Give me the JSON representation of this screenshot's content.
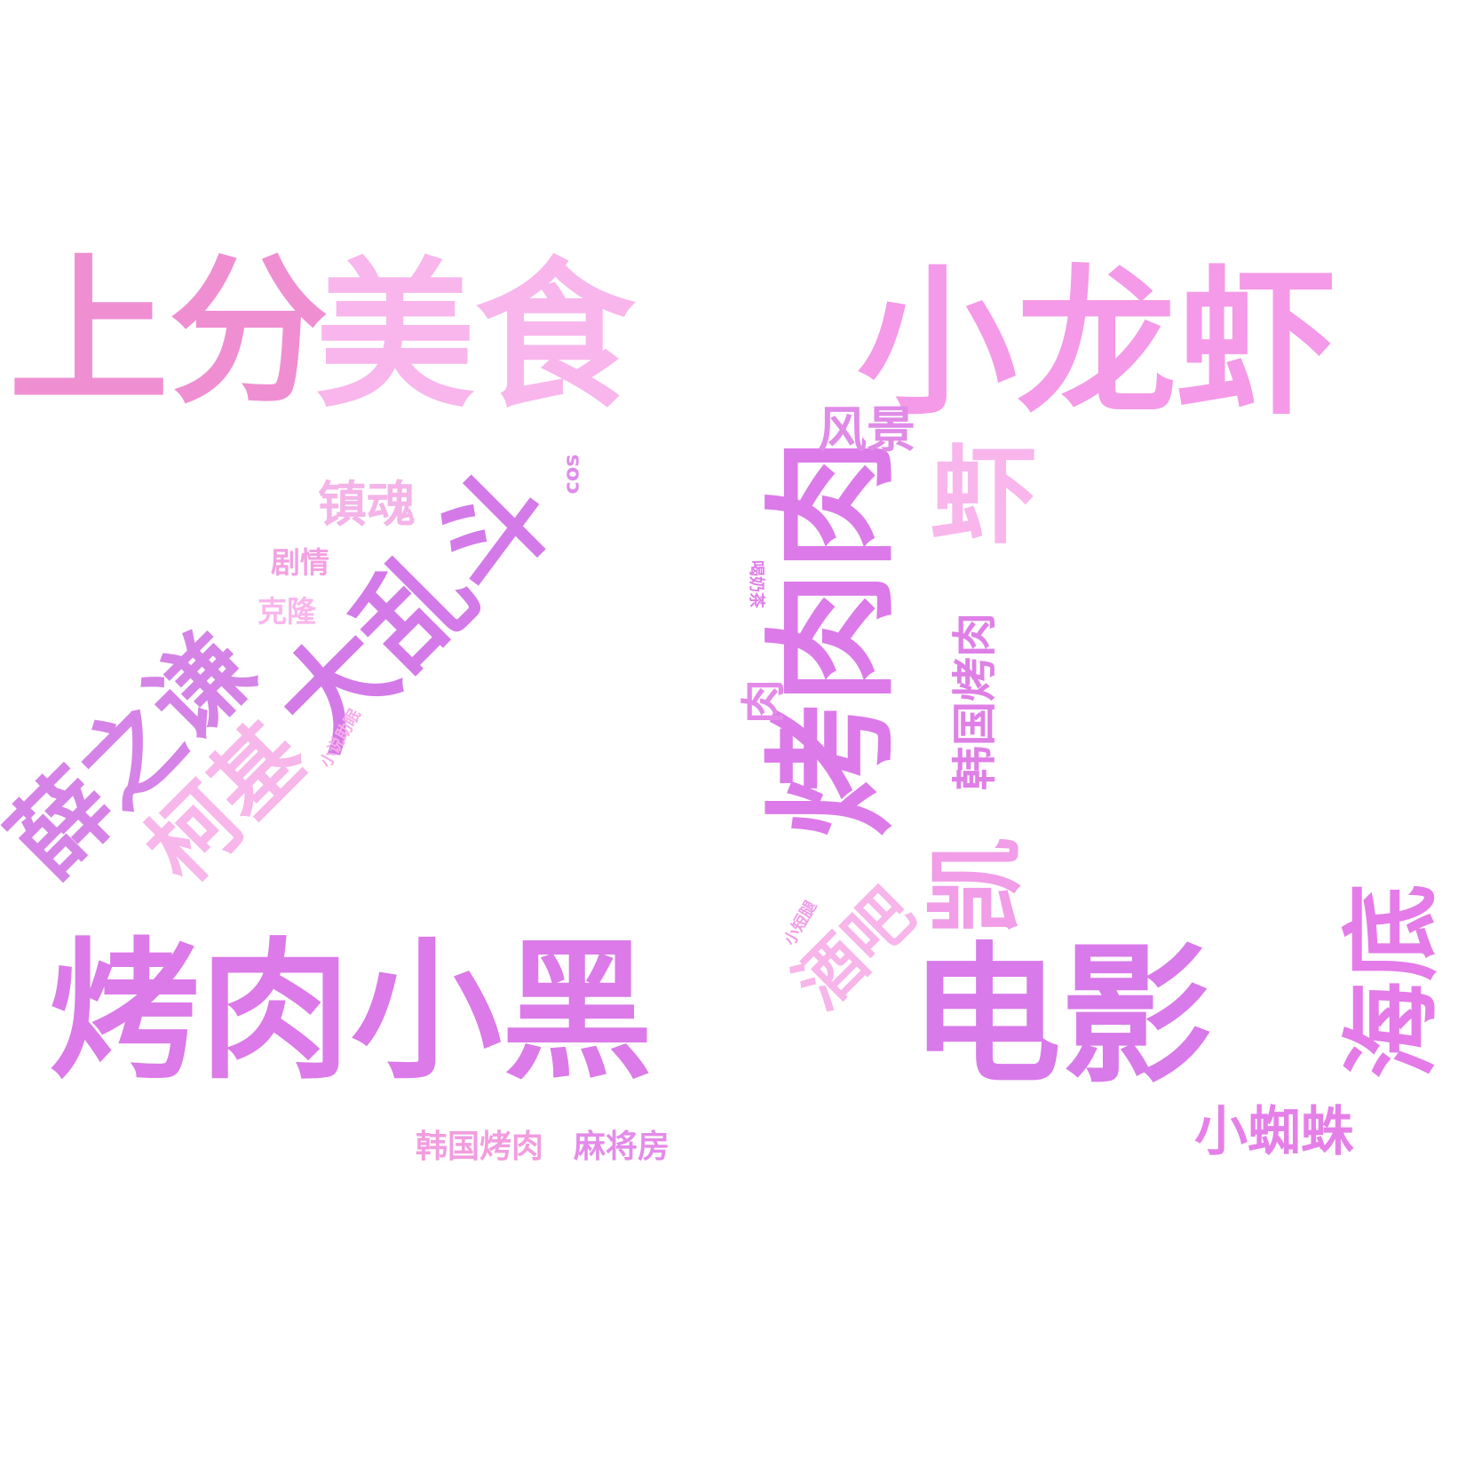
{
  "words": [
    {
      "key": "shangfen",
      "text": "上分",
      "color": "#ef8fd2"
    },
    {
      "key": "meishi",
      "text": "美食",
      "color": "#f8b6ec"
    },
    {
      "key": "xiaolongxia",
      "text": "小龙虾",
      "color": "#f49ae8"
    },
    {
      "key": "kaorou_xiaohei",
      "text": "烤肉小黑",
      "color": "#db7ae8"
    },
    {
      "key": "dianying",
      "text": "电影",
      "color": "#d87ae9"
    },
    {
      "key": "kaorou_vertical",
      "text": "烤肉肉",
      "color": "#dc7ae9"
    },
    {
      "key": "daluandou",
      "text": "大乱斗",
      "color": "#d37ae8"
    },
    {
      "key": "xuezhiqian",
      "text": "薛之谦",
      "color": "#d583e6"
    },
    {
      "key": "keji",
      "text": "柯基",
      "color": "#f7b7ea"
    },
    {
      "key": "xia",
      "text": "虾",
      "color": "#f8b6ec"
    },
    {
      "key": "kai",
      "text": "凯",
      "color": "#f19de8"
    },
    {
      "key": "jiubao",
      "text": "酒吧",
      "color": "#f7b5ea"
    },
    {
      "key": "haidi",
      "text": "海底",
      "color": "#e47be8"
    },
    {
      "key": "zhenhun",
      "text": "镇魂",
      "color": "#f4b4e8"
    },
    {
      "key": "fengjing",
      "text": "风景",
      "color": "#e08be8"
    },
    {
      "key": "xiaozhizhu",
      "text": "小蜘蛛",
      "color": "#e680e9"
    },
    {
      "key": "hanguo_kaorou_v",
      "text": "韩国烤肉",
      "color": "#df80e6"
    },
    {
      "key": "rou",
      "text": "肉",
      "color": "#e38ae9"
    },
    {
      "key": "hanguo_kaorou_h",
      "text": "韩国烤肉",
      "color": "#f19ddf"
    },
    {
      "key": "majiangfang",
      "text": "麻将房",
      "color": "#e48be9"
    },
    {
      "key": "juqing",
      "text": "剧情",
      "color": "#f3a0e2"
    },
    {
      "key": "kelong",
      "text": "克隆",
      "color": "#f9b6ec"
    },
    {
      "key": "cos",
      "text": "cos",
      "color": "#e08cea"
    },
    {
      "key": "xiaoshuo_zhumian",
      "text": "小说助眠",
      "color": "#f7ace9"
    },
    {
      "key": "he_naicha",
      "text": "喝奶茶",
      "color": "#de80e8"
    },
    {
      "key": "xiaoduantui",
      "text": "小短腿",
      "color": "#ef9ee8"
    }
  ]
}
